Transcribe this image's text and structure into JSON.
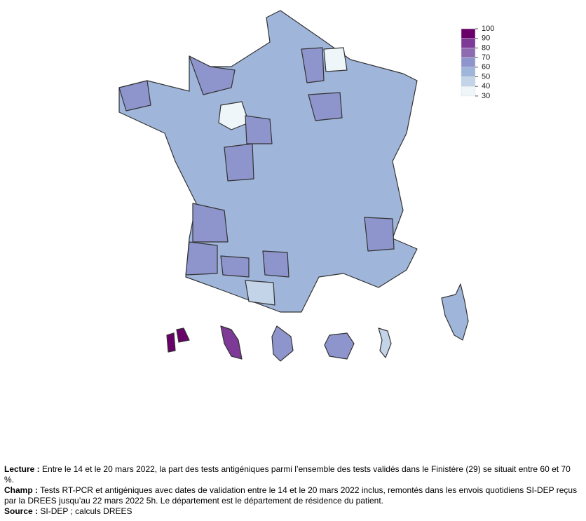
{
  "legend": {
    "ticks": [
      100,
      90,
      80,
      70,
      60,
      50,
      40,
      30
    ],
    "colors": [
      "#6a006a",
      "#7d3a97",
      "#8e6bb0",
      "#8e95cc",
      "#9fb5da",
      "#c3d4e8",
      "#eef6fa"
    ]
  },
  "notes": [
    {
      "label": "Lecture :",
      "text": "Entre le 14 et le 20 mars 2022, la part des tests antigéniques parmi l’ensemble des tests validés dans le Finistère (29) se situait entre 60 et 70 %."
    },
    {
      "label": "Champ :",
      "text": "Tests RT-PCR et antigéniques avec dates de validation entre le 14 et le 20 mars 2022 inclus, remontés dans les envois quotidiens SI-DEP reçus par la DREES jusqu’au 22 mars 2022 5h. Le département est le département de résidence du patient."
    },
    {
      "label": "Source :",
      "text": "SI-DEP ; calculs DREES"
    }
  ]
}
